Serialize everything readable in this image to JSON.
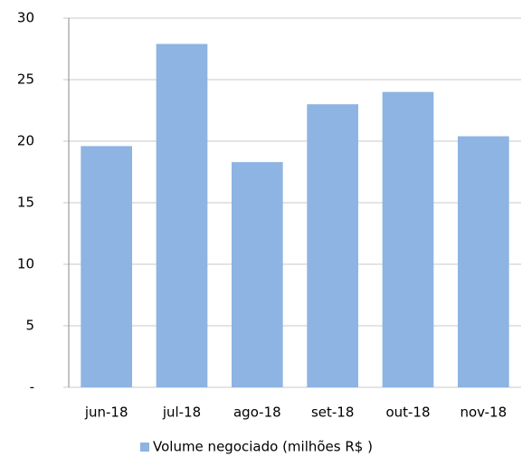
{
  "chart_data": {
    "type": "bar",
    "categories": [
      "jun-18",
      "jul-18",
      "ago-18",
      "set-18",
      "out-18",
      "nov-18"
    ],
    "series": [
      {
        "name": "Volume negociado (milhões R$ )",
        "color": "#8db4e2",
        "values": [
          19.6,
          27.9,
          18.3,
          23.0,
          24.0,
          20.4
        ]
      }
    ],
    "ylim": [
      0,
      30
    ],
    "yticks": [
      {
        "value": 0,
        "label": "-"
      },
      5,
      10,
      15,
      20,
      25,
      30
    ],
    "grid": true,
    "legend": "bottom"
  }
}
